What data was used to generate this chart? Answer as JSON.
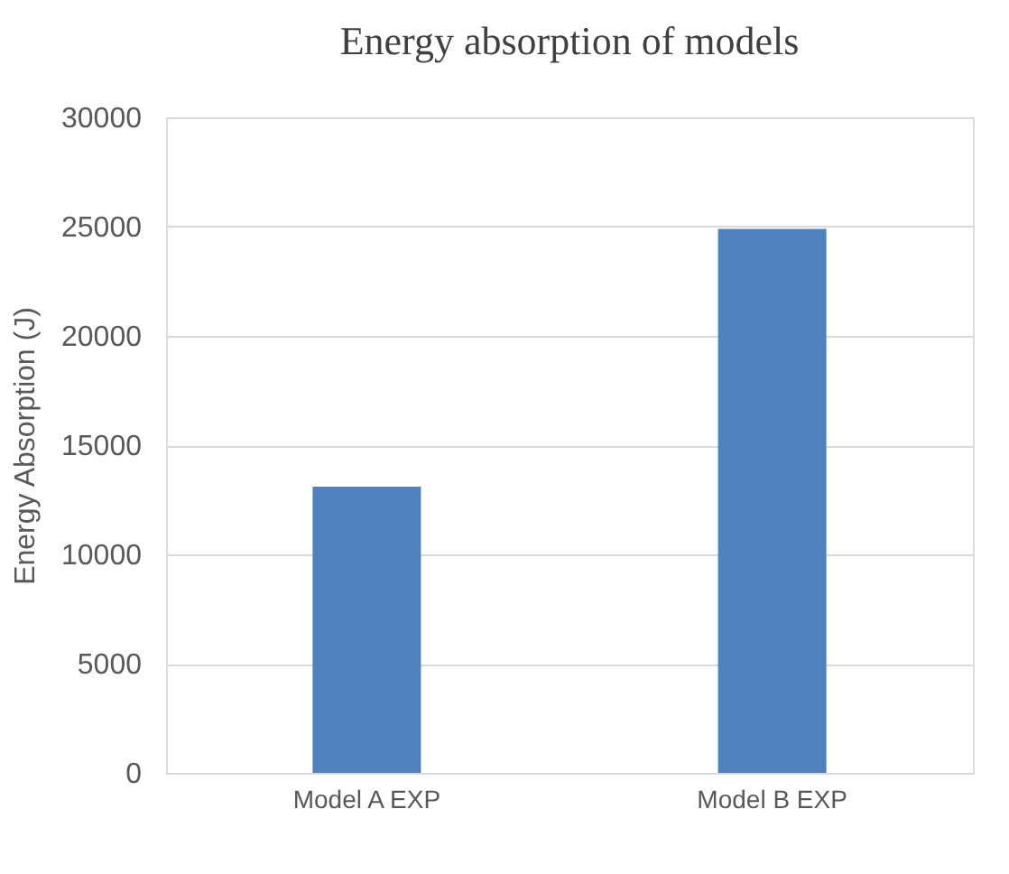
{
  "chart_data": {
    "type": "bar",
    "title": "Energy absorption of models",
    "ylabel": "Energy Absorption (J)",
    "categories": [
      "Model A EXP",
      "Model B EXP"
    ],
    "values": [
      13100,
      24900
    ],
    "color": "#4f81bd",
    "ylim": [
      0,
      30000
    ],
    "yticks": [
      0,
      5000,
      10000,
      15000,
      20000,
      25000,
      30000
    ],
    "grid": "y"
  }
}
